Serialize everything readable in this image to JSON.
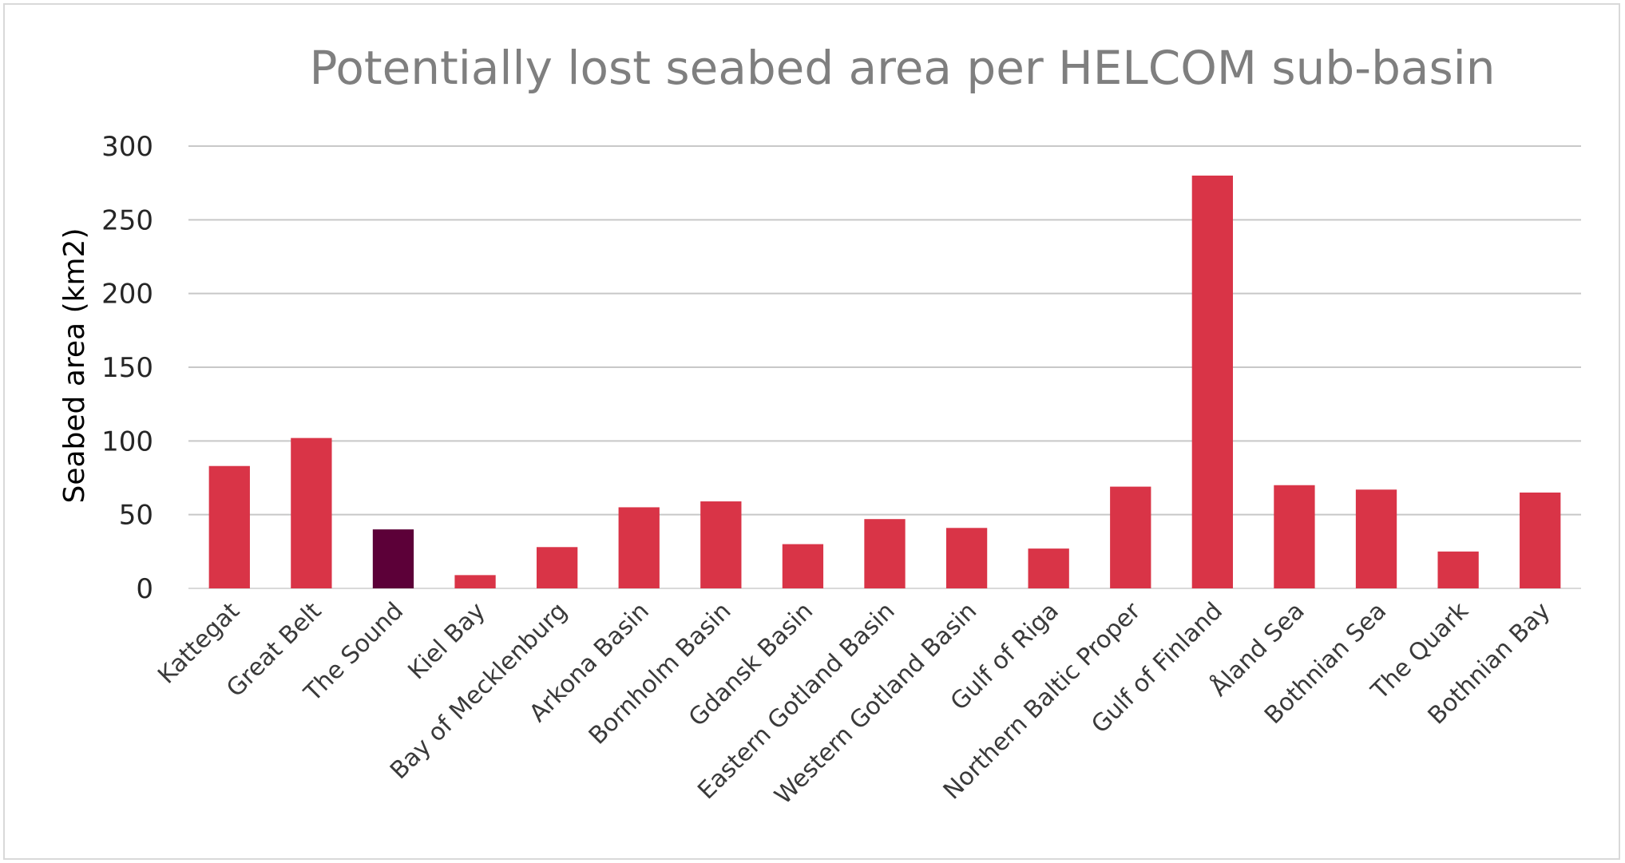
{
  "chart_data": {
    "type": "bar",
    "title": "Potentially lost seabed area per HELCOM sub-basin",
    "xlabel": "",
    "ylabel": "Seabed area (km2)",
    "ylim": [
      0,
      300
    ],
    "yticks": [
      "0",
      "50",
      "100",
      "150",
      "200",
      "250",
      "300"
    ],
    "grid": true,
    "categories": [
      "Kattegat",
      "Great Belt",
      "The Sound",
      "Kiel Bay",
      "Bay of Mecklenburg",
      "Arkona Basin",
      "Bornholm Basin",
      "Gdansk Basin",
      "Eastern Gotland Basin",
      "Western Gotland Basin",
      "Gulf of Riga",
      "Northern Baltic Proper",
      "Gulf of Finland",
      "Åland Sea",
      "Bothnian Sea",
      "The Quark",
      "Bothnian Bay"
    ],
    "values": [
      83,
      102,
      40,
      9,
      28,
      55,
      59,
      30,
      47,
      41,
      27,
      69,
      280,
      70,
      67,
      25,
      65
    ],
    "colors": {
      "bar": "#d93447",
      "highlight": "#5c0038",
      "highlight_category": "The Sound"
    }
  }
}
